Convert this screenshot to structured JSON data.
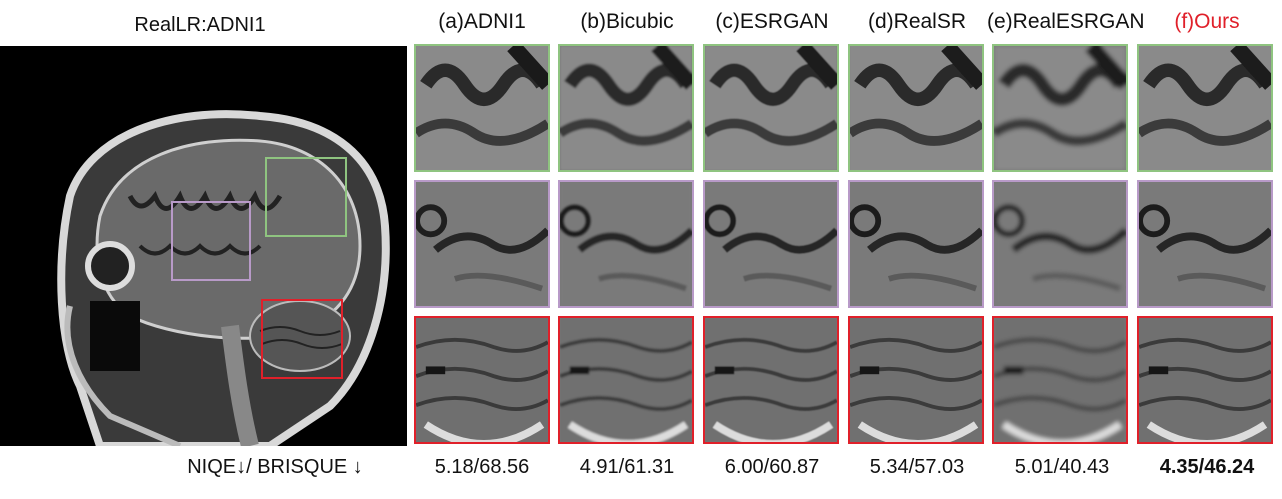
{
  "figure": {
    "main_title": "RealLR:ADNI1",
    "columns": [
      {
        "label": "(a)ADNI1",
        "metric": "5.18/68.56",
        "highlight": false,
        "color": "#111111"
      },
      {
        "label": "(b)Bicubic",
        "metric": "4.91/61.31",
        "highlight": false,
        "color": "#111111"
      },
      {
        "label": "(c)ESRGAN",
        "metric": "6.00/60.87",
        "highlight": false,
        "color": "#111111"
      },
      {
        "label": "(d)RealSR",
        "metric": "5.34/57.03",
        "highlight": false,
        "color": "#111111"
      },
      {
        "label": "(e)RealESRGAN",
        "metric": "5.01/40.43",
        "highlight": false,
        "color": "#111111"
      },
      {
        "label": "(f)Ours",
        "metric": "4.35/46.24",
        "highlight": true,
        "color": "#e0202a"
      }
    ],
    "metric_label": "NIQE↓/ BRISQUE ↓",
    "box_colors": {
      "green": "#8fc480",
      "purple": "#b89ac8",
      "red": "#e0202a"
    }
  }
}
